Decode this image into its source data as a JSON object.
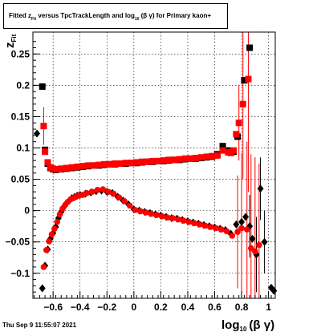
{
  "title": {
    "fitted": "Fitted",
    "z": "z",
    "fit_sub": "Fit",
    "versus": "versus TpcTrackLength and log",
    "log_sub": "10",
    "bg": "(β  γ)",
    "tail": "for Primary kaon+"
  },
  "timestamp": "Thu Sep  9 11:55:07 2021",
  "chart_data": {
    "type": "scatter",
    "xlabel": {
      "main": "log",
      "sub": "10",
      "tail": "(β γ)"
    },
    "ylabel": {
      "main": "z",
      "sub": "Fit"
    },
    "xlim": [
      -0.75,
      1.05
    ],
    "ylim": [
      -0.14,
      0.285
    ],
    "x_ticks": [
      -0.6,
      -0.4,
      -0.2,
      0,
      0.2,
      0.4,
      0.6,
      0.8,
      1
    ],
    "x_tick_labels": [
      "−0.6",
      "−0.4",
      "−0.2",
      "0",
      "0.2",
      "0.4",
      "0.6",
      "0.8",
      "1"
    ],
    "y_ticks": [
      -0.1,
      -0.05,
      0,
      0.05,
      0.1,
      0.15,
      0.2,
      0.25
    ],
    "y_tick_labels": [
      "−0.1",
      "−0.05",
      "0",
      "0.05",
      "0.1",
      "0.15",
      "0.2",
      "0.25"
    ],
    "grid": true,
    "series": [
      {
        "marker": "square",
        "color": "#000000",
        "points": [
          [
            -0.68,
            0.198
          ],
          [
            -0.66,
            0.097
          ],
          [
            -0.64,
            0.075
          ],
          [
            -0.62,
            0.068
          ],
          [
            -0.6,
            0.066
          ],
          [
            -0.58,
            0.065
          ],
          [
            -0.56,
            0.066
          ],
          [
            -0.54,
            0.066
          ],
          [
            -0.5,
            0.067
          ],
          [
            -0.46,
            0.068
          ],
          [
            -0.42,
            0.069
          ],
          [
            -0.38,
            0.07
          ],
          [
            -0.34,
            0.071
          ],
          [
            -0.3,
            0.072
          ],
          [
            -0.26,
            0.072
          ],
          [
            -0.22,
            0.073
          ],
          [
            -0.18,
            0.074
          ],
          [
            -0.14,
            0.074
          ],
          [
            -0.1,
            0.075
          ],
          [
            -0.06,
            0.075
          ],
          [
            -0.02,
            0.076
          ],
          [
            0.02,
            0.076
          ],
          [
            0.06,
            0.077
          ],
          [
            0.1,
            0.078
          ],
          [
            0.14,
            0.078
          ],
          [
            0.18,
            0.079
          ],
          [
            0.22,
            0.079
          ],
          [
            0.26,
            0.08
          ],
          [
            0.3,
            0.081
          ],
          [
            0.34,
            0.081
          ],
          [
            0.38,
            0.082
          ],
          [
            0.42,
            0.083
          ],
          [
            0.46,
            0.083
          ],
          [
            0.5,
            0.084
          ],
          [
            0.54,
            0.085
          ],
          [
            0.58,
            0.086
          ],
          [
            0.62,
            0.09
          ],
          [
            0.66,
            0.103
          ],
          [
            0.7,
            0.096
          ],
          [
            0.72,
            0.093
          ],
          [
            0.74,
            0.094
          ],
          [
            0.77,
            0.118
          ],
          [
            0.82,
            0.208
          ],
          [
            0.86,
            0.26
          ]
        ],
        "err": []
      },
      {
        "marker": "square",
        "color": "#ff0000",
        "points": [
          [
            -0.67,
            0.135
          ],
          [
            -0.66,
            0.094
          ],
          [
            -0.64,
            0.077
          ],
          [
            -0.62,
            0.069
          ],
          [
            -0.6,
            0.067
          ],
          [
            -0.58,
            0.066
          ],
          [
            -0.56,
            0.066
          ],
          [
            -0.54,
            0.067
          ],
          [
            -0.5,
            0.068
          ],
          [
            -0.46,
            0.069
          ],
          [
            -0.42,
            0.07
          ],
          [
            -0.38,
            0.071
          ],
          [
            -0.34,
            0.072
          ],
          [
            -0.3,
            0.072
          ],
          [
            -0.26,
            0.073
          ],
          [
            -0.22,
            0.074
          ],
          [
            -0.18,
            0.074
          ],
          [
            -0.14,
            0.075
          ],
          [
            -0.1,
            0.075
          ],
          [
            -0.06,
            0.076
          ],
          [
            -0.02,
            0.076
          ],
          [
            0.02,
            0.077
          ],
          [
            0.06,
            0.078
          ],
          [
            0.1,
            0.078
          ],
          [
            0.14,
            0.079
          ],
          [
            0.18,
            0.079
          ],
          [
            0.22,
            0.08
          ],
          [
            0.26,
            0.081
          ],
          [
            0.3,
            0.081
          ],
          [
            0.34,
            0.082
          ],
          [
            0.38,
            0.083
          ],
          [
            0.42,
            0.083
          ],
          [
            0.46,
            0.084
          ],
          [
            0.5,
            0.085
          ],
          [
            0.54,
            0.086
          ],
          [
            0.58,
            0.087
          ],
          [
            0.62,
            0.088
          ],
          [
            0.66,
            0.096
          ],
          [
            0.7,
            0.093
          ],
          [
            0.72,
            0.092
          ],
          [
            0.74,
            0.096
          ],
          [
            0.76,
            0.122
          ],
          [
            0.78,
            0.14
          ],
          [
            0.81,
            0.17
          ],
          [
            0.85,
            0.21
          ]
        ],
        "err": [
          [
            -0.67,
            0.03
          ],
          [
            0.78,
            0.06
          ],
          [
            0.81,
            0.12
          ],
          [
            0.85,
            0.18
          ]
        ]
      },
      {
        "marker": "diamond",
        "color": "#000000",
        "points": [
          [
            -0.72,
            0.123
          ],
          [
            -0.68,
            -0.124
          ],
          [
            -0.66,
            -0.088
          ],
          [
            -0.64,
            -0.062
          ],
          [
            -0.62,
            -0.045
          ],
          [
            -0.6,
            -0.036
          ],
          [
            -0.58,
            -0.026
          ],
          [
            -0.56,
            -0.012
          ],
          [
            -0.54,
            -0.002
          ],
          [
            -0.52,
            0.006
          ],
          [
            -0.5,
            0.012
          ],
          [
            -0.48,
            0.016
          ],
          [
            -0.46,
            0.02
          ],
          [
            -0.44,
            0.022
          ],
          [
            -0.42,
            0.024
          ],
          [
            -0.4,
            0.025
          ],
          [
            -0.36,
            0.027
          ],
          [
            -0.32,
            0.029
          ],
          [
            -0.28,
            0.031
          ],
          [
            -0.24,
            0.032
          ],
          [
            -0.2,
            0.03
          ],
          [
            -0.16,
            0.028
          ],
          [
            -0.12,
            0.022
          ],
          [
            -0.08,
            0.016
          ],
          [
            -0.04,
            0.01
          ],
          [
            0.0,
            0.002
          ],
          [
            0.04,
            0.0
          ],
          [
            0.08,
            -0.002
          ],
          [
            0.12,
            -0.004
          ],
          [
            0.16,
            -0.006
          ],
          [
            0.2,
            -0.008
          ],
          [
            0.24,
            -0.01
          ],
          [
            0.28,
            -0.012
          ],
          [
            0.32,
            -0.013
          ],
          [
            0.36,
            -0.015
          ],
          [
            0.4,
            -0.017
          ],
          [
            0.44,
            -0.019
          ],
          [
            0.48,
            -0.021
          ],
          [
            0.52,
            -0.023
          ],
          [
            0.56,
            -0.025
          ],
          [
            0.6,
            -0.027
          ],
          [
            0.64,
            -0.029
          ],
          [
            0.68,
            -0.031
          ],
          [
            0.72,
            -0.037
          ],
          [
            0.76,
            -0.022
          ],
          [
            0.8,
            -0.018
          ],
          [
            0.83,
            -0.01
          ],
          [
            0.86,
            -0.025
          ],
          [
            0.88,
            -0.045
          ],
          [
            0.91,
            -0.07
          ],
          [
            0.94,
            0.035
          ],
          [
            0.97,
            -0.05
          ],
          [
            1.02,
            -0.123
          ],
          [
            1.04,
            -0.128
          ]
        ],
        "err": [
          [
            0.86,
            0.05
          ],
          [
            0.91,
            0.06
          ],
          [
            0.94,
            0.05
          ],
          [
            0.97,
            0.05
          ]
        ]
      },
      {
        "marker": "circle",
        "color": "#ff0000",
        "points": [
          [
            -0.67,
            -0.09
          ],
          [
            -0.65,
            -0.063
          ],
          [
            -0.63,
            -0.049
          ],
          [
            -0.61,
            -0.038
          ],
          [
            -0.59,
            -0.029
          ],
          [
            -0.57,
            -0.018
          ],
          [
            -0.55,
            -0.006
          ],
          [
            -0.53,
            0.003
          ],
          [
            -0.51,
            0.009
          ],
          [
            -0.49,
            0.014
          ],
          [
            -0.47,
            0.018
          ],
          [
            -0.45,
            0.02
          ],
          [
            -0.43,
            0.022
          ],
          [
            -0.41,
            0.024
          ],
          [
            -0.38,
            0.025
          ],
          [
            -0.35,
            0.028
          ],
          [
            -0.31,
            0.03
          ],
          [
            -0.27,
            0.033
          ],
          [
            -0.23,
            0.034
          ],
          [
            -0.19,
            0.03
          ],
          [
            -0.15,
            0.027
          ],
          [
            -0.11,
            0.021
          ],
          [
            -0.07,
            0.015
          ],
          [
            -0.03,
            0.008
          ],
          [
            0.01,
            0.001
          ],
          [
            0.05,
            -0.001
          ],
          [
            0.09,
            -0.003
          ],
          [
            0.13,
            -0.005
          ],
          [
            0.17,
            -0.007
          ],
          [
            0.21,
            -0.009
          ],
          [
            0.25,
            -0.011
          ],
          [
            0.29,
            -0.012
          ],
          [
            0.33,
            -0.014
          ],
          [
            0.37,
            -0.016
          ],
          [
            0.41,
            -0.018
          ],
          [
            0.45,
            -0.02
          ],
          [
            0.49,
            -0.022
          ],
          [
            0.53,
            -0.024
          ],
          [
            0.57,
            -0.026
          ],
          [
            0.61,
            -0.028
          ],
          [
            0.65,
            -0.03
          ],
          [
            0.69,
            -0.033
          ],
          [
            0.73,
            -0.04
          ],
          [
            0.77,
            -0.034
          ],
          [
            0.8,
            -0.028
          ],
          [
            0.84,
            -0.03
          ],
          [
            0.87,
            -0.06
          ],
          [
            0.9,
            -0.065
          ],
          [
            0.93,
            -0.055
          ]
        ],
        "err": [
          [
            0.77,
            0.09
          ],
          [
            0.8,
            0.12
          ],
          [
            0.84,
            0.14
          ],
          [
            0.87,
            0.15
          ],
          [
            0.9,
            0.15
          ],
          [
            0.93,
            0.13
          ]
        ]
      }
    ]
  }
}
